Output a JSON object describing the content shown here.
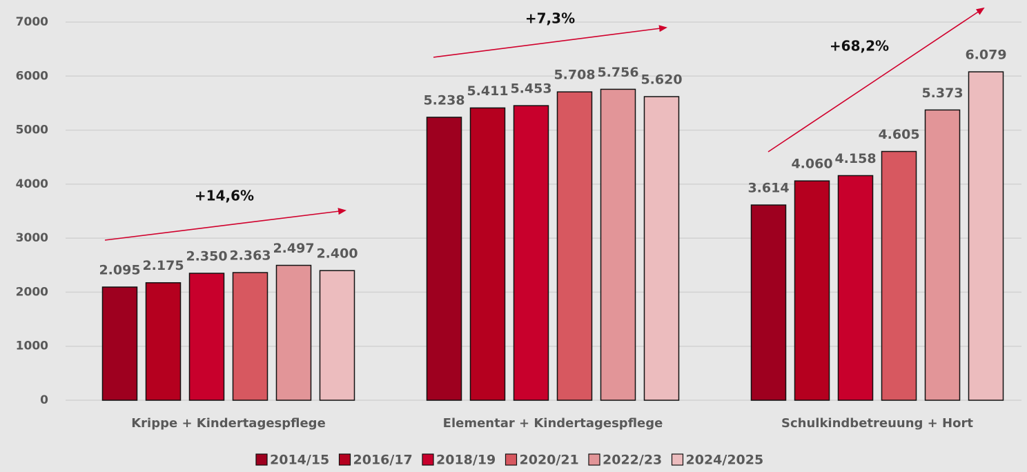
{
  "chart_data": {
    "type": "bar",
    "categories": [
      "Krippe + Kindertagespflege",
      "Elementar + Kindertagespflege",
      "Schulkindbetreuung + Hort"
    ],
    "series": [
      {
        "name": "2014/15",
        "color": "#9e001f",
        "values": [
          2095,
          5238,
          3614
        ],
        "value_labels": [
          "2.095",
          "5.238",
          "3.614"
        ]
      },
      {
        "name": "2016/17",
        "color": "#b5001f",
        "values": [
          2175,
          5411,
          4060
        ],
        "value_labels": [
          "2.175",
          "5.411",
          "4.060"
        ]
      },
      {
        "name": "2018/19",
        "color": "#c8002c",
        "values": [
          2350,
          5453,
          4158
        ],
        "value_labels": [
          "2.350",
          "5.453",
          "4.158"
        ]
      },
      {
        "name": "2020/21",
        "color": "#d75860",
        "values": [
          2363,
          5708,
          4605
        ],
        "value_labels": [
          "2.363",
          "5.708",
          "4.605"
        ]
      },
      {
        "name": "2022/23",
        "color": "#e29598",
        "values": [
          2497,
          5756,
          5373
        ],
        "value_labels": [
          "2.497",
          "5.756",
          "5.373"
        ]
      },
      {
        "name": "2024/2025",
        "color": "#ecbcbe",
        "values": [
          2400,
          5620,
          6079
        ],
        "value_labels": [
          "2.400",
          "5.620",
          "6.079"
        ]
      }
    ],
    "annotations": [
      "+14,6%",
      "+7,3%",
      "+68,2%"
    ],
    "ylim": [
      0,
      7000
    ],
    "yticks": [
      0,
      1000,
      2000,
      3000,
      4000,
      5000,
      6000,
      7000
    ],
    "grid": true,
    "legend": "bottom"
  }
}
